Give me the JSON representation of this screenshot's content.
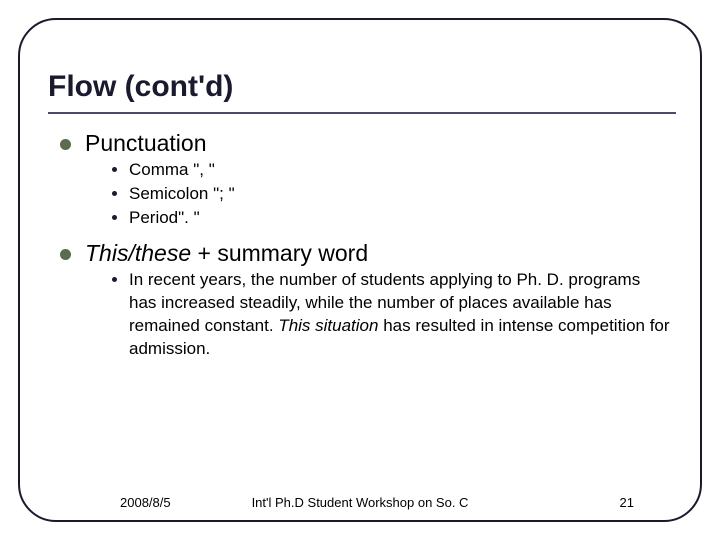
{
  "slide": {
    "title": "Flow (cont'd)",
    "border_color": "#1a1a2e",
    "border_radius": 38,
    "title_fontsize": 30,
    "title_color": "#1a1a2e",
    "underline_color": "#4a4a6a",
    "level1_bullet_color": "#5a6b4f",
    "level2_bullet_color": "#1a1a2e",
    "l1_fontsize": 23,
    "l2_fontsize": 17
  },
  "body": {
    "items": [
      {
        "label": "Punctuation",
        "italic": false,
        "sub": [
          "Comma \", \"",
          "Semicolon \"; \"",
          "Period\". \""
        ]
      },
      {
        "label_pre_italic": "This/these",
        "label_post": " + summary word",
        "sub_rich": {
          "pre": "In recent years, the number of students applying to Ph. D. programs has increased steadily, while the number of places available has remained constant. ",
          "italic": "This situation",
          "post": " has resulted in intense competition for admission."
        }
      }
    ]
  },
  "footer": {
    "date": "2008/8/5",
    "center": "Int'l Ph.D Student Workshop on So. C",
    "page": "21",
    "fontsize": 13
  }
}
